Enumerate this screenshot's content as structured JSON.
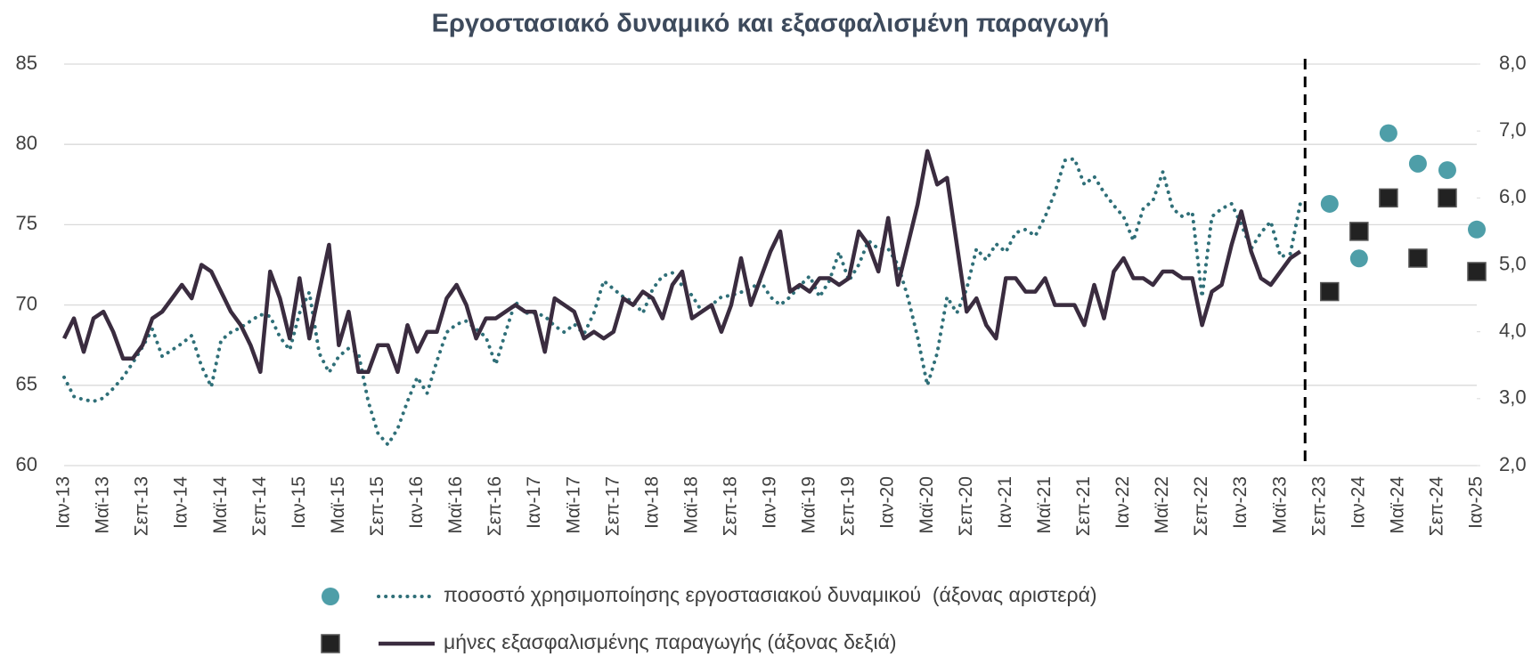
{
  "chart_data": {
    "type": "line",
    "title": "Εργοστασιακό δυναμικό και εξασφαλισμένη παραγωγή",
    "categories": [
      "Ιαν-13",
      null,
      null,
      null,
      "Μαϊ-13",
      null,
      null,
      null,
      "Σεπ-13",
      null,
      null,
      null,
      "Ιαν-14",
      null,
      null,
      null,
      "Μαϊ-14",
      null,
      null,
      null,
      "Σεπ-14",
      null,
      null,
      null,
      "Ιαν-15",
      null,
      null,
      null,
      "Μαϊ-15",
      null,
      null,
      null,
      "Σεπ-15",
      null,
      null,
      null,
      "Ιαν-16",
      null,
      null,
      null,
      "Μαϊ-16",
      null,
      null,
      null,
      "Σεπ-16",
      null,
      null,
      null,
      "Ιαν-17",
      null,
      null,
      null,
      "Μαϊ-17",
      null,
      null,
      null,
      "Σεπ-17",
      null,
      null,
      null,
      "Ιαν-18",
      null,
      null,
      null,
      "Μαϊ-18",
      null,
      null,
      null,
      "Σεπ-18",
      null,
      null,
      null,
      "Ιαν-19",
      null,
      null,
      null,
      "Μαϊ-19",
      null,
      null,
      null,
      "Σεπ-19",
      null,
      null,
      null,
      "Ιαν-20",
      null,
      null,
      null,
      "Μαϊ-20",
      null,
      null,
      null,
      "Σεπ-20",
      null,
      null,
      null,
      "Ιαν-21",
      null,
      null,
      null,
      "Μαϊ-21",
      null,
      null,
      null,
      "Σεπ-21",
      null,
      null,
      null,
      "Ιαν-22",
      null,
      null,
      null,
      "Μαϊ-22",
      null,
      null,
      null,
      "Σεπ-22",
      null,
      null,
      null,
      "Ιαν-23",
      null,
      null,
      null,
      "Μαϊ-23",
      null,
      null,
      null,
      "Σεπ-23",
      null,
      null,
      null,
      "Ιαν-24",
      null,
      null,
      null,
      "Μαϊ-24",
      null,
      null,
      null,
      "Σεπ-24",
      null,
      null,
      null,
      "Ιαν-25"
    ],
    "series": [
      {
        "name": "ποσοστό χρησιμοποίησης εργοστασιακού δυναμικού  (άξονας αριστερά)",
        "axis": "y",
        "color": "#2f6f78",
        "line_style": "dotted",
        "marker": "circle",
        "marker_color": "#4e9ea8",
        "values": [
          65.5,
          64.3,
          64.1,
          64.0,
          64.2,
          64.8,
          65.5,
          66.4,
          67.4,
          68.5,
          66.8,
          67.2,
          67.6,
          68.1,
          66.2,
          64.9,
          67.8,
          68.3,
          68.6,
          69.0,
          69.4,
          69.3,
          68.0,
          67.2,
          69.5,
          70.8,
          67.0,
          65.8,
          66.8,
          67.3,
          67.0,
          64.0,
          62.0,
          61.3,
          62.3,
          64.0,
          65.5,
          64.5,
          66.5,
          68.3,
          68.8,
          69.0,
          68.5,
          68.0,
          66.3,
          68.3,
          70.2,
          69.5,
          69.5,
          69.3,
          68.7,
          68.3,
          68.8,
          68.2,
          69.5,
          71.5,
          71.0,
          70.5,
          70.2,
          69.5,
          71.0,
          71.8,
          72.0,
          71.2,
          70.6,
          69.6,
          70.0,
          70.5,
          70.6,
          70.8,
          71.0,
          71.5,
          70.5,
          70.0,
          70.5,
          71.2,
          71.8,
          70.5,
          71.5,
          73.3,
          71.5,
          72.5,
          74.0,
          73.5,
          73.5,
          72.5,
          70.5,
          68.0,
          65.0,
          67.0,
          70.5,
          69.5,
          71.0,
          73.5,
          72.8,
          73.8,
          73.3,
          74.5,
          74.7,
          74.3,
          75.5,
          77.0,
          79.0,
          79.1,
          77.5,
          78.0,
          77.0,
          76.2,
          75.5,
          74.0,
          76.0,
          76.5,
          78.3,
          76.0,
          75.5,
          75.8,
          70.5,
          75.5,
          76.0,
          76.3,
          75.0,
          73.5,
          74.5,
          75.2,
          73.0,
          73.2,
          76.3,
          null,
          null,
          null,
          null,
          null,
          null,
          null,
          null,
          null,
          null,
          null,
          null,
          null,
          null,
          null,
          null,
          null,
          null
        ],
        "projection": [
          null,
          null,
          null,
          null,
          null,
          null,
          null,
          null,
          null,
          null,
          null,
          null,
          null,
          null,
          null,
          null,
          null,
          null,
          null,
          null,
          null,
          null,
          null,
          null,
          null,
          null,
          null,
          null,
          null,
          null,
          null,
          null,
          null,
          null,
          null,
          null,
          null,
          null,
          null,
          null,
          null,
          null,
          null,
          null,
          null,
          null,
          null,
          null,
          null,
          null,
          null,
          null,
          null,
          null,
          null,
          null,
          null,
          null,
          null,
          null,
          null,
          null,
          null,
          null,
          null,
          null,
          null,
          null,
          null,
          null,
          null,
          null,
          null,
          null,
          null,
          null,
          null,
          null,
          null,
          null,
          null,
          null,
          null,
          null,
          null,
          null,
          null,
          null,
          null,
          null,
          null,
          null,
          null,
          null,
          null,
          null,
          null,
          null,
          null,
          null,
          null,
          null,
          null,
          null,
          null,
          null,
          null,
          null,
          null,
          null,
          null,
          null,
          null,
          null,
          null,
          null,
          null,
          null,
          null,
          null,
          null,
          null,
          null,
          null,
          null,
          null,
          null,
          null,
          null,
          76.3,
          null,
          null,
          72.9,
          null,
          null,
          80.7,
          null,
          null,
          78.8,
          null,
          null,
          78.4,
          null,
          null,
          74.7
        ]
      },
      {
        "name": "μήνες εξασφαλισμένης παραγωγής (άξονας δεξιά)",
        "axis": "y2",
        "color": "#3a2c3f",
        "line_style": "solid",
        "marker": "square",
        "marker_color": "#222222",
        "values": [
          3.9,
          4.2,
          3.7,
          4.2,
          4.3,
          4.0,
          3.6,
          3.6,
          3.8,
          4.2,
          4.3,
          4.5,
          4.7,
          4.5,
          5.0,
          4.9,
          4.6,
          4.3,
          4.1,
          3.8,
          3.4,
          4.9,
          4.5,
          3.9,
          4.8,
          3.9,
          4.6,
          5.3,
          3.8,
          4.3,
          3.4,
          3.4,
          3.8,
          3.8,
          3.4,
          4.1,
          3.7,
          4.0,
          4.0,
          4.5,
          4.7,
          4.4,
          3.9,
          4.2,
          4.2,
          4.3,
          4.4,
          4.3,
          4.3,
          3.7,
          4.5,
          4.4,
          4.3,
          3.9,
          4.0,
          3.9,
          4.0,
          4.5,
          4.4,
          4.6,
          4.5,
          4.2,
          4.7,
          4.9,
          4.2,
          4.3,
          4.4,
          4.0,
          4.4,
          5.1,
          4.4,
          4.8,
          5.2,
          5.5,
          4.6,
          4.7,
          4.6,
          4.8,
          4.8,
          4.7,
          4.8,
          5.5,
          5.3,
          4.9,
          5.7,
          4.7,
          5.3,
          5.9,
          6.7,
          6.2,
          6.3,
          5.3,
          4.3,
          4.5,
          4.1,
          3.9,
          4.8,
          4.8,
          4.6,
          4.6,
          4.8,
          4.4,
          4.4,
          4.4,
          4.1,
          4.7,
          4.2,
          4.9,
          5.1,
          4.8,
          4.8,
          4.7,
          4.9,
          4.9,
          4.8,
          4.8,
          4.1,
          4.6,
          4.7,
          5.3,
          5.8,
          5.2,
          4.8,
          4.7,
          4.9,
          5.1,
          5.2,
          null,
          null,
          null,
          null,
          null,
          null,
          null,
          null,
          null,
          null,
          null,
          null,
          null,
          null,
          null,
          null,
          null,
          null
        ],
        "projection": [
          null,
          null,
          null,
          null,
          null,
          null,
          null,
          null,
          null,
          null,
          null,
          null,
          null,
          null,
          null,
          null,
          null,
          null,
          null,
          null,
          null,
          null,
          null,
          null,
          null,
          null,
          null,
          null,
          null,
          null,
          null,
          null,
          null,
          null,
          null,
          null,
          null,
          null,
          null,
          null,
          null,
          null,
          null,
          null,
          null,
          null,
          null,
          null,
          null,
          null,
          null,
          null,
          null,
          null,
          null,
          null,
          null,
          null,
          null,
          null,
          null,
          null,
          null,
          null,
          null,
          null,
          null,
          null,
          null,
          null,
          null,
          null,
          null,
          null,
          null,
          null,
          null,
          null,
          null,
          null,
          null,
          null,
          null,
          null,
          null,
          null,
          null,
          null,
          null,
          null,
          null,
          null,
          null,
          null,
          null,
          null,
          null,
          null,
          null,
          null,
          null,
          null,
          null,
          null,
          null,
          null,
          null,
          null,
          null,
          null,
          null,
          null,
          null,
          null,
          null,
          null,
          null,
          null,
          null,
          null,
          null,
          null,
          null,
          null,
          null,
          null,
          null,
          null,
          null,
          4.6,
          null,
          null,
          5.5,
          null,
          null,
          6.0,
          null,
          null,
          5.1,
          null,
          null,
          6.0,
          null,
          null,
          4.9
        ]
      }
    ],
    "ylim": [
      60,
      85
    ],
    "yticks": [
      60,
      65,
      70,
      75,
      80,
      85
    ],
    "y2lim": [
      2,
      8
    ],
    "y2ticks": [
      {
        "value": 2,
        "label": "2,0"
      },
      {
        "value": 3,
        "label": "3,0"
      },
      {
        "value": 4,
        "label": "4,0"
      },
      {
        "value": 5,
        "label": "5,0"
      },
      {
        "value": 6,
        "label": "6,0"
      },
      {
        "value": 7,
        "label": "7,0"
      },
      {
        "value": 8,
        "label": "8,0"
      }
    ],
    "grid": true
  }
}
